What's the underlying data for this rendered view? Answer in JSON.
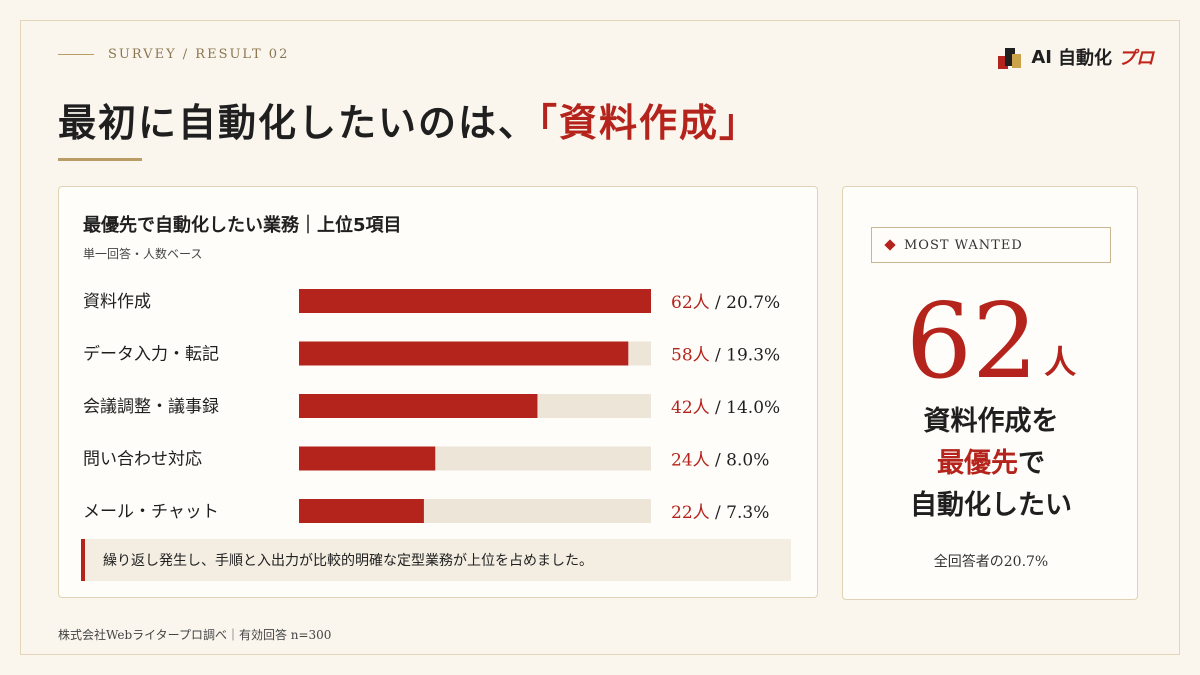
{
  "header": {
    "eyebrow": "SURVEY / RESULT 02",
    "title_main": "最初に自動化したいのは、",
    "title_highlight": "「資料作成」"
  },
  "logo": {
    "ai": "AI",
    "auto": "自動化",
    "pro": "プロ"
  },
  "card": {
    "title": "最優先で自動化したい業務｜上位5項目",
    "subtitle": "単一回答・人数ベース",
    "note": "繰り返し発生し、手順と入出力が比較的明確な定型業務が上位を占めました。"
  },
  "chart_data": {
    "type": "bar",
    "orientation": "horizontal",
    "categories": [
      "資料作成",
      "データ入力・転記",
      "会議調整・議事録",
      "問い合わせ対応",
      "メール・チャット"
    ],
    "values": [
      62,
      58,
      42,
      24,
      22
    ],
    "percents": [
      "20.7%",
      "19.3%",
      "14.0%",
      "8.0%",
      "7.3%"
    ],
    "value_unit": "人",
    "xlim": [
      0,
      62
    ],
    "bar_color": "#b5241c",
    "track_color": "#ede5d8"
  },
  "side": {
    "badge": "MOST WANTED",
    "big_number": "62",
    "big_unit": "人",
    "msg_line1": "資料作成を",
    "msg_line2_red": "最優先",
    "msg_line2_rest": "で",
    "msg_line3": "自動化したい",
    "share": "全回答者の20.7%"
  },
  "footer": {
    "source": "株式会社Webライタープロ調べ｜有効回答 n=300"
  },
  "colors": {
    "accent": "#b5241c",
    "gold": "#b99d64",
    "background": "#faf6ee"
  }
}
